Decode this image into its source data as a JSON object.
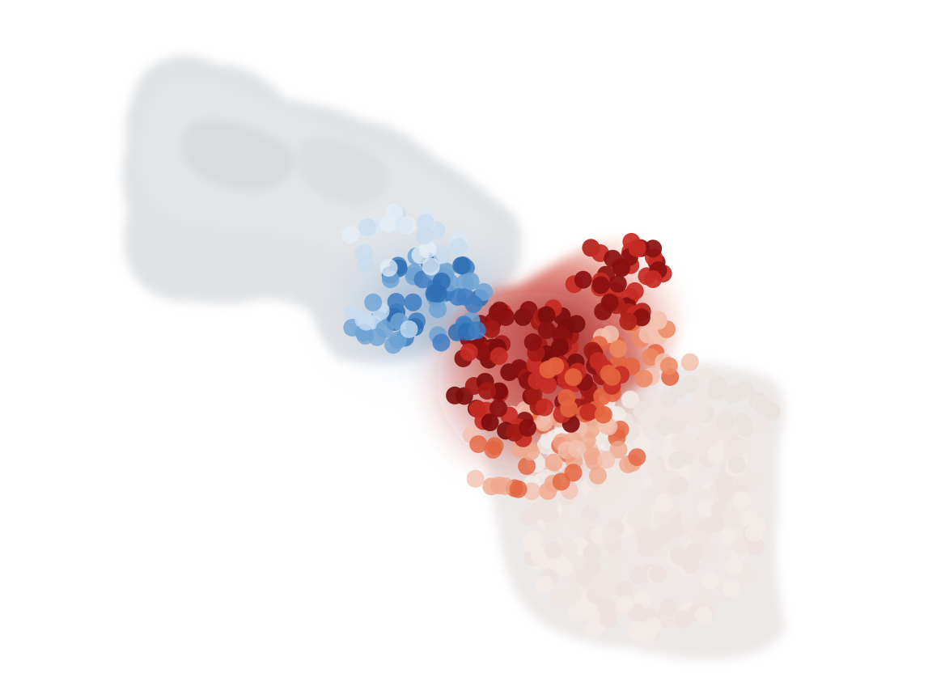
{
  "figure": {
    "background": "#ffffff",
    "subject": "protein-interface-residues",
    "colors": {
      "surface_gray": "#d9dcdf",
      "surface_blush": "#efe4e0",
      "blue_strong": "#2f6fb3",
      "blue_mid": "#6ea3d4",
      "blue_light": "#c7dcef",
      "red_dark": "#8a1010",
      "red_mid": "#c62b24",
      "red_orange": "#e4643f",
      "red_pale": "#f3c2b0",
      "residue_pale": "#efe6e2"
    },
    "regions": [
      {
        "name": "left-chain-surface",
        "color_key": "surface_gray"
      },
      {
        "name": "blue-interface-patch",
        "color_key": "blue_strong"
      },
      {
        "name": "red-interface-patch",
        "color_key": "red_dark"
      },
      {
        "name": "right-chain-surface",
        "color_key": "surface_blush"
      }
    ]
  }
}
